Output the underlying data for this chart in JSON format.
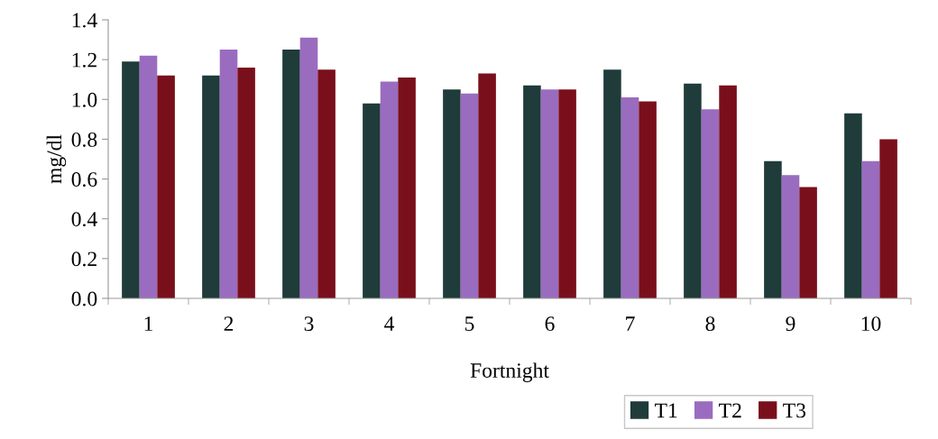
{
  "chart_data": {
    "type": "bar",
    "xlabel": "Fortnight",
    "ylabel": "mg/dl",
    "categories": [
      "1",
      "2",
      "3",
      "4",
      "5",
      "6",
      "7",
      "8",
      "9",
      "10"
    ],
    "series": [
      {
        "name": "T1",
        "color": "#1f3b3a",
        "values": [
          1.19,
          1.12,
          1.25,
          0.98,
          1.05,
          1.07,
          1.15,
          1.08,
          0.69,
          0.93
        ]
      },
      {
        "name": "T2",
        "color": "#9a6cbf",
        "values": [
          1.22,
          1.25,
          1.31,
          1.09,
          1.03,
          1.05,
          1.01,
          0.95,
          0.62,
          0.69
        ]
      },
      {
        "name": "T3",
        "color": "#7a0f1c",
        "values": [
          1.12,
          1.16,
          1.15,
          1.11,
          1.13,
          1.05,
          0.99,
          1.07,
          0.56,
          0.8
        ]
      }
    ],
    "ylim": [
      0,
      1.4
    ],
    "yticks": [
      {
        "value": 0,
        "label": "0.0"
      },
      0.2,
      0.4,
      0.6,
      0.8,
      {
        "value": 1,
        "label": "1.0"
      },
      1.2,
      1.4
    ],
    "grid": false,
    "legend": "bottom right"
  }
}
